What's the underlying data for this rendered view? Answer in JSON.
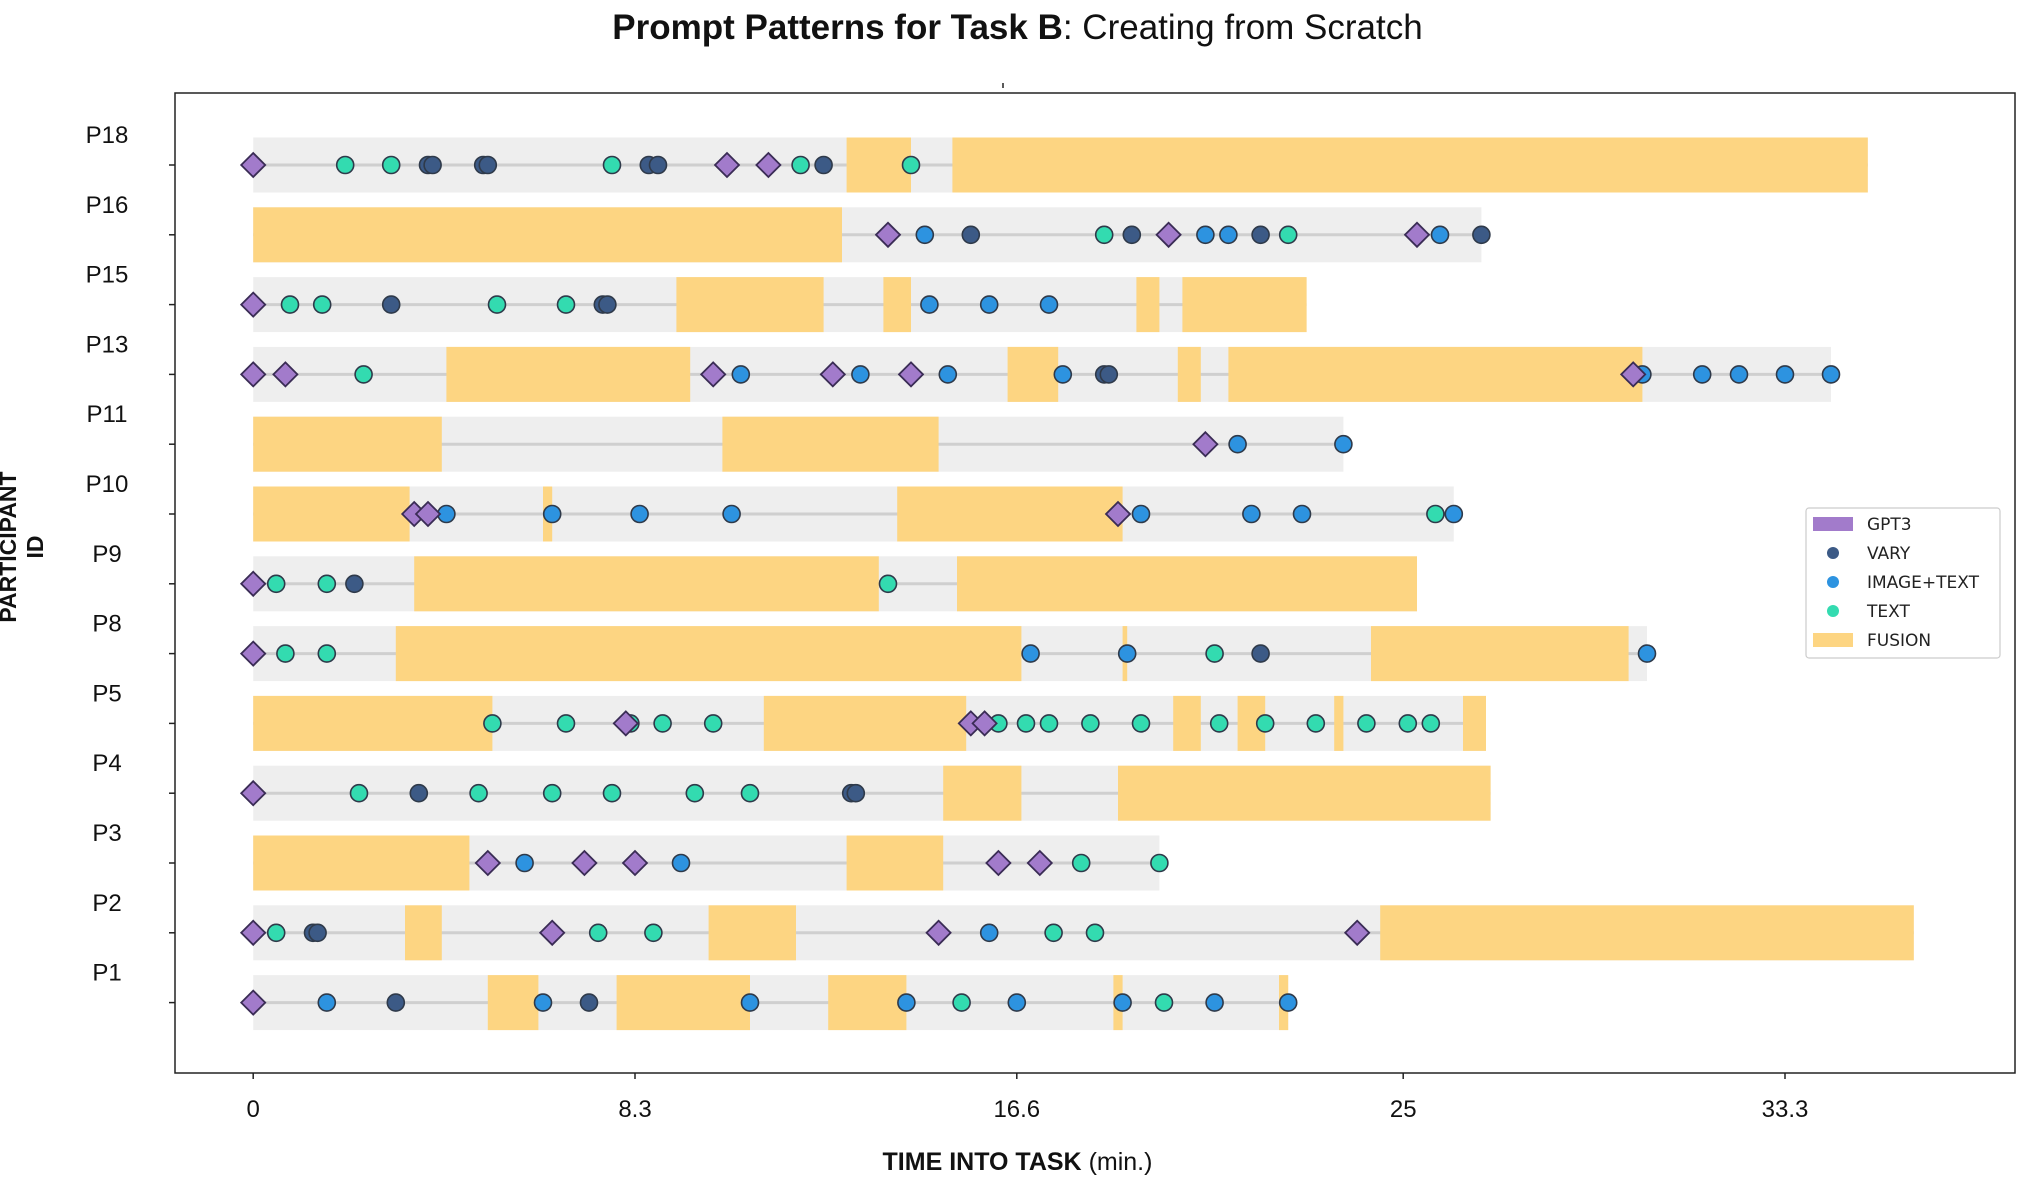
{
  "title": {
    "bold": "Prompt Patterns for Task B",
    "rest": ": Creating from Scratch"
  },
  "colors": {
    "fusion": "#fdd582",
    "track": "#eeeeee",
    "gpt3": "#a27bcb",
    "vary": "#3c5a86",
    "image_text": "#2d93e0",
    "text": "#33dbb0"
  },
  "chart_data": {
    "type": "timeline",
    "xlabel_bold": "TIME INTO TASK",
    "xlabel_unit": "(min.)",
    "ylabel": "PARTICIPANT ID",
    "xlim": [
      -1.7,
      38.3
    ],
    "x_ticks": [
      0,
      8.3,
      16.6,
      25,
      33.3
    ],
    "x_tick_labels": [
      "0",
      "8.3",
      "16.6",
      "25",
      "33.3"
    ],
    "legend": [
      "GPT3",
      "VARY",
      "IMAGE+TEXT",
      "TEXT",
      "FUSION"
    ],
    "legend_position": "center-right",
    "participants": [
      {
        "id": "P18",
        "end": 35.1,
        "fusion": [
          [
            12.9,
            14.3
          ],
          [
            15.2,
            35.1
          ]
        ],
        "gpt3": [
          0,
          10.3,
          11.2
        ],
        "vary": [
          3.8,
          3.9,
          5.0,
          5.1,
          8.6,
          8.8,
          12.4
        ],
        "image_text": [],
        "text": [
          2.0,
          3.0,
          7.8,
          11.9,
          14.3
        ]
      },
      {
        "id": "P16",
        "end": 26.7,
        "fusion": [
          [
            0,
            12.8
          ]
        ],
        "gpt3": [
          13.8,
          19.9,
          25.3
        ],
        "vary": [
          15.6,
          19.1,
          21.9,
          26.7
        ],
        "image_text": [
          14.6,
          20.7,
          21.2,
          25.8
        ],
        "text": [
          18.5,
          22.5
        ]
      },
      {
        "id": "P15",
        "end": 22.9,
        "fusion": [
          [
            9.2,
            12.4
          ],
          [
            13.7,
            14.3
          ],
          [
            19.2,
            19.7
          ],
          [
            20.2,
            22.9
          ]
        ],
        "gpt3": [
          0
        ],
        "vary": [
          3.0,
          7.6,
          7.7
        ],
        "image_text": [
          14.7,
          16.0,
          17.3
        ],
        "text": [
          0.8,
          1.5,
          5.3,
          6.8
        ]
      },
      {
        "id": "P13",
        "end": 34.3,
        "fusion": [
          [
            4.2,
            9.5
          ],
          [
            16.4,
            17.5
          ],
          [
            20.1,
            20.6
          ],
          [
            21.2,
            30.2
          ]
        ],
        "gpt3": [
          0,
          0.7,
          10.0,
          12.6,
          14.3,
          30.0
        ],
        "vary": [
          18.5,
          18.6
        ],
        "image_text": [
          10.6,
          13.2,
          15.1,
          17.6,
          30.2,
          31.5,
          32.3,
          33.3,
          34.3
        ],
        "text": [
          2.4
        ]
      },
      {
        "id": "P11",
        "end": 23.7,
        "fusion": [
          [
            0,
            4.1
          ],
          [
            10.2,
            14.9
          ]
        ],
        "gpt3": [
          20.7
        ],
        "vary": [],
        "image_text": [
          21.4,
          23.7
        ],
        "text": []
      },
      {
        "id": "P10",
        "end": 26.1,
        "fusion": [
          [
            0,
            3.4
          ],
          [
            6.3,
            6.5
          ],
          [
            14.0,
            18.9
          ]
        ],
        "gpt3": [
          3.5,
          3.8,
          18.8
        ],
        "vary": [],
        "image_text": [
          4.2,
          6.5,
          8.4,
          10.4,
          19.3,
          21.7,
          22.8,
          26.1
        ],
        "text": [
          25.7
        ]
      },
      {
        "id": "P9",
        "end": 25.3,
        "fusion": [
          [
            3.5,
            13.6
          ],
          [
            15.3,
            25.3
          ]
        ],
        "gpt3": [
          0
        ],
        "vary": [
          2.2
        ],
        "image_text": [],
        "text": [
          0.5,
          1.6,
          13.8
        ]
      },
      {
        "id": "P8",
        "end": 30.3,
        "fusion": [
          [
            3.1,
            16.7
          ],
          [
            18.9,
            19.0
          ],
          [
            24.3,
            29.9
          ]
        ],
        "gpt3": [
          0
        ],
        "vary": [
          21.9
        ],
        "image_text": [
          16.9,
          19.0,
          30.3
        ],
        "text": [
          0.7,
          1.6,
          20.9
        ]
      },
      {
        "id": "P5",
        "end": 26.8,
        "fusion": [
          [
            0,
            5.2
          ],
          [
            11.1,
            15.5
          ],
          [
            20.0,
            20.6
          ],
          [
            21.4,
            22.0
          ],
          [
            23.5,
            23.7
          ],
          [
            26.3,
            26.8
          ]
        ],
        "gpt3": [
          8.1,
          15.6,
          15.9
        ],
        "vary": [],
        "image_text": [],
        "text": [
          5.2,
          6.8,
          8.2,
          8.9,
          10.0,
          16.2,
          16.8,
          17.3,
          18.2,
          19.3,
          21.0,
          22.0,
          23.1,
          24.2,
          25.1,
          25.6
        ]
      },
      {
        "id": "P4",
        "end": 26.9,
        "fusion": [
          [
            15.0,
            16.7
          ],
          [
            18.8,
            26.9
          ]
        ],
        "gpt3": [
          0
        ],
        "vary": [
          3.6,
          13.0,
          13.1
        ],
        "image_text": [],
        "text": [
          2.3,
          4.9,
          6.5,
          7.8,
          9.6,
          10.8
        ]
      },
      {
        "id": "P3",
        "end": 19.7,
        "fusion": [
          [
            0,
            4.7
          ],
          [
            12.9,
            15.0
          ]
        ],
        "gpt3": [
          5.1,
          7.2,
          8.3,
          16.2,
          17.1
        ],
        "vary": [],
        "image_text": [
          5.9,
          9.3
        ],
        "text": [
          18.0,
          19.7
        ]
      },
      {
        "id": "P2",
        "end": 36.1,
        "fusion": [
          [
            3.3,
            4.1
          ],
          [
            9.9,
            11.8
          ],
          [
            24.5,
            36.1
          ]
        ],
        "gpt3": [
          0,
          6.5,
          14.9,
          24.0
        ],
        "vary": [
          1.3,
          1.4
        ],
        "image_text": [
          16.0
        ],
        "text": [
          0.5,
          7.5,
          8.7,
          17.4,
          18.3
        ]
      },
      {
        "id": "P1",
        "end": 22.5,
        "fusion": [
          [
            5.1,
            6.2
          ],
          [
            7.9,
            10.8
          ],
          [
            12.5,
            14.2
          ],
          [
            18.7,
            18.9
          ],
          [
            22.3,
            22.5
          ]
        ],
        "gpt3": [
          0
        ],
        "vary": [
          3.1,
          7.3
        ],
        "image_text": [
          1.6,
          6.3,
          10.8,
          14.2,
          16.6,
          18.9,
          20.9,
          22.5
        ],
        "text": [
          15.4,
          19.8
        ]
      }
    ]
  }
}
